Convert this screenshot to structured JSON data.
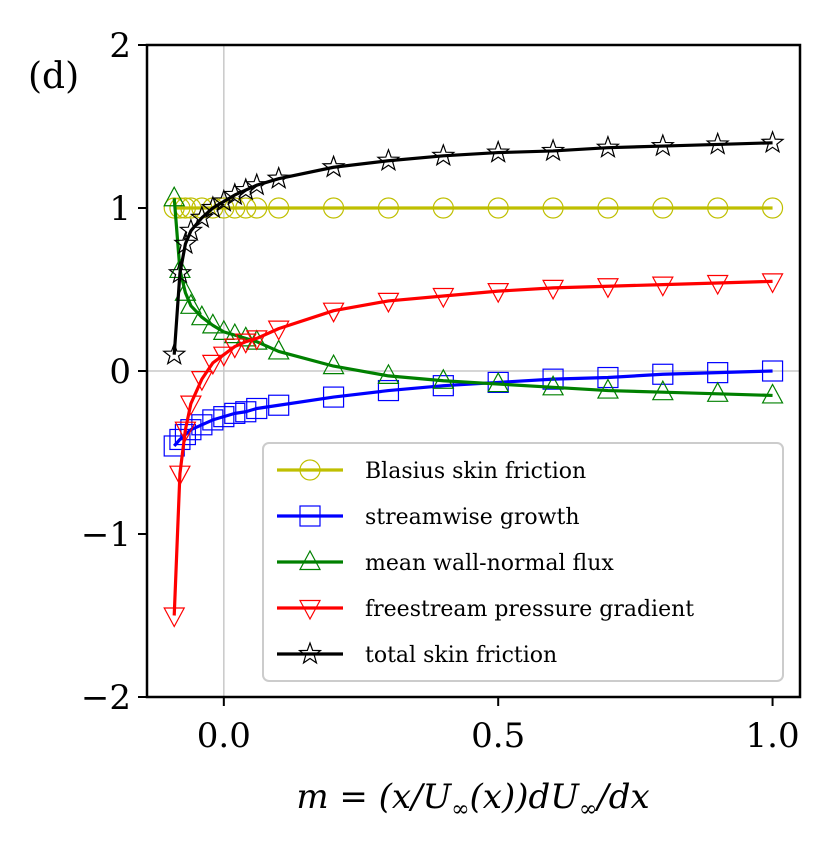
{
  "chart_data": {
    "type": "line",
    "panel_label": "(d)",
    "xlabel": "m = (x/U∞(x))dU∞/dx",
    "ylabel": "",
    "xlim": [
      -0.14,
      1.05
    ],
    "ylim": [
      -2,
      2
    ],
    "xticks": [
      0.0,
      0.5,
      1.0
    ],
    "xtick_labels": [
      "0.0",
      "0.5",
      "1.0"
    ],
    "yticks": [
      -2,
      -1,
      0,
      1,
      2
    ],
    "ytick_labels": [
      "−2",
      "−1",
      "0",
      "1",
      "2"
    ],
    "grid": "lines at x = 0 and y = 0",
    "legend_position": "lower-right",
    "x": [
      -0.0904,
      -0.08,
      -0.07,
      -0.06,
      -0.04,
      -0.02,
      0.0,
      0.02,
      0.04,
      0.06,
      0.1,
      0.2,
      0.3,
      0.4,
      0.5,
      0.6,
      0.7,
      0.8,
      0.9,
      1.0
    ],
    "series": [
      {
        "name": "Blasius skin friction",
        "color": "#bfbf00",
        "marker": "circle",
        "values": [
          1.0,
          1.0,
          1.0,
          1.0,
          1.0,
          1.0,
          1.0,
          1.0,
          1.0,
          1.0,
          1.0,
          1.0,
          1.0,
          1.0,
          1.0,
          1.0,
          1.0,
          1.0,
          1.0,
          1.0
        ]
      },
      {
        "name": "streamwise growth",
        "color": "#0000ff",
        "marker": "square",
        "values": [
          -0.46,
          -0.42,
          -0.39,
          -0.36,
          -0.33,
          -0.3,
          -0.28,
          -0.26,
          -0.25,
          -0.23,
          -0.21,
          -0.16,
          -0.12,
          -0.09,
          -0.07,
          -0.05,
          -0.04,
          -0.02,
          -0.01,
          0.0
        ]
      },
      {
        "name": "mean wall-normal flux",
        "color": "#008000",
        "marker": "triangle-up",
        "values": [
          1.06,
          0.62,
          0.48,
          0.4,
          0.33,
          0.28,
          0.24,
          0.22,
          0.2,
          0.18,
          0.12,
          0.03,
          -0.03,
          -0.06,
          -0.08,
          -0.1,
          -0.12,
          -0.13,
          -0.14,
          -0.15
        ]
      },
      {
        "name": "freestream pressure gradient",
        "color": "#ff0000",
        "marker": "triangle-down",
        "values": [
          -1.5,
          -0.63,
          -0.36,
          -0.2,
          -0.05,
          0.05,
          0.1,
          0.15,
          0.18,
          0.2,
          0.26,
          0.37,
          0.43,
          0.46,
          0.49,
          0.51,
          0.52,
          0.53,
          0.54,
          0.55
        ]
      },
      {
        "name": "total skin friction",
        "color": "#000000",
        "marker": "star",
        "values": [
          0.1,
          0.6,
          0.78,
          0.86,
          0.94,
          1.0,
          1.04,
          1.08,
          1.11,
          1.14,
          1.18,
          1.25,
          1.29,
          1.32,
          1.34,
          1.35,
          1.37,
          1.38,
          1.39,
          1.4
        ]
      }
    ]
  }
}
